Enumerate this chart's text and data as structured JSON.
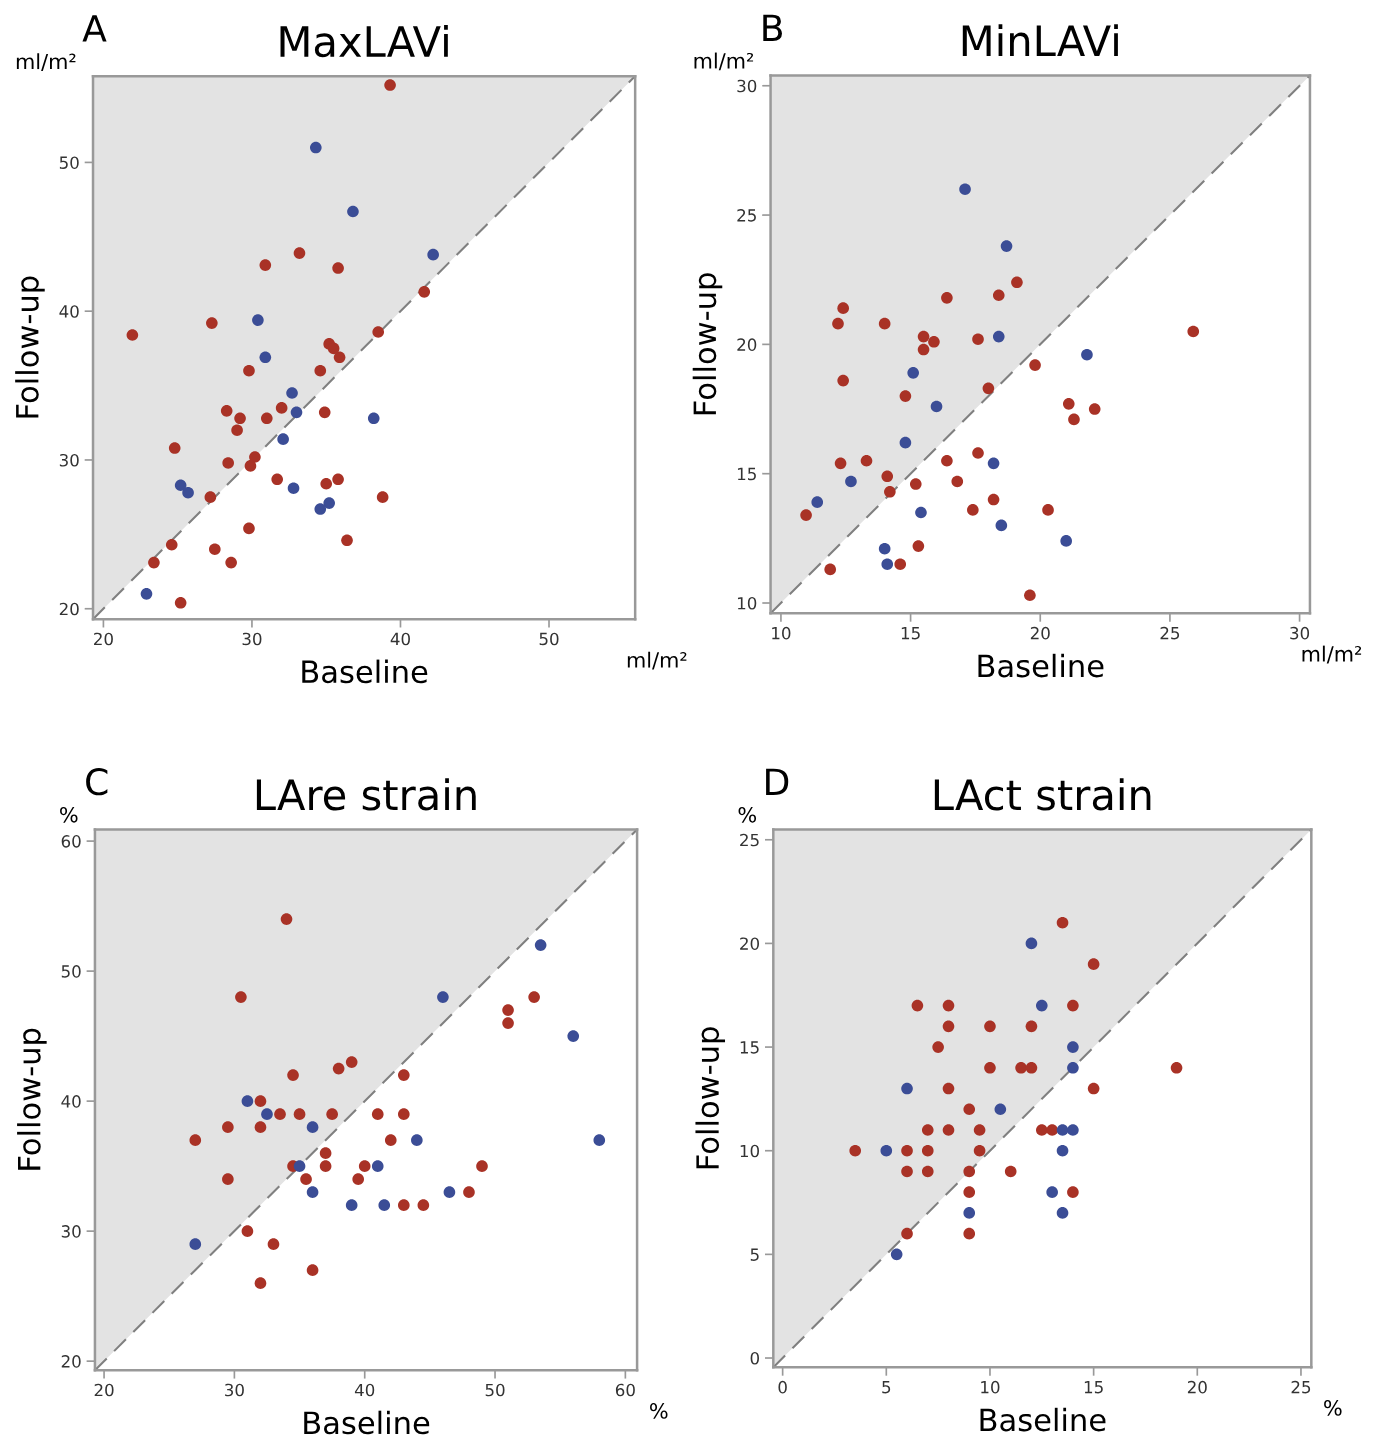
{
  "chart_data": [
    {
      "type": "scatter",
      "title": "MaxLAVi",
      "xlabel": "Baseline",
      "ylabel": "Follow-up",
      "annotations": [
        "A",
        "ml/m²",
        "ml/m²"
      ],
      "xlim": [
        19.3,
        55.8
      ],
      "ylim": [
        19.3,
        55.8
      ],
      "xticks": [
        20,
        30,
        40,
        50
      ],
      "yticks": [
        20,
        30,
        40,
        50
      ],
      "grid": false,
      "series": [
        {
          "color": "#a93226",
          "marker": "circle",
          "x": [
            39.3,
            21.95,
            27.3,
            30.9,
            33.2,
            35.8,
            41.6,
            38.5,
            29.8,
            34.6,
            35.2,
            35.5,
            35.9,
            28.3,
            29.2,
            29.0,
            31.0,
            32.0,
            24.8,
            28.4,
            30.2,
            29.9,
            27.2,
            34.9,
            31.7,
            35.0,
            35.8,
            38.8,
            29.8,
            36.4,
            24.6,
            27.5,
            23.4,
            28.6,
            25.2
          ],
          "values": [
            55.2,
            38.4,
            39.2,
            43.1,
            43.9,
            42.9,
            41.3,
            38.6,
            36.0,
            36.0,
            37.8,
            37.5,
            36.9,
            33.3,
            32.8,
            32.0,
            32.8,
            33.5,
            30.8,
            29.8,
            30.2,
            29.6,
            27.5,
            33.2,
            28.7,
            28.4,
            28.7,
            27.5,
            25.4,
            24.6,
            24.3,
            24.0,
            23.1,
            23.1,
            20.4
          ]
        },
        {
          "color": "#3b4d96",
          "marker": "circle",
          "x": [
            34.3,
            36.8,
            42.2,
            30.4,
            30.9,
            32.7,
            33.0,
            32.1,
            38.2,
            25.2,
            25.7,
            32.8,
            35.2,
            34.6,
            22.9
          ],
          "values": [
            51.0,
            46.7,
            43.8,
            39.4,
            36.9,
            34.5,
            33.2,
            31.4,
            32.8,
            28.3,
            27.8,
            28.1,
            27.1,
            26.7,
            21.0
          ]
        },
        {
          "type": "line",
          "color": "#808080",
          "line_style": "dashed",
          "x": [
            19.3,
            55.8
          ],
          "values": [
            19.3,
            55.8
          ]
        }
      ]
    },
    {
      "type": "scatter",
      "title": "MinLAVi",
      "xlabel": "Baseline",
      "ylabel": "Follow-up",
      "annotations": [
        "B",
        "ml/m²",
        "ml/m²"
      ],
      "xlim": [
        9.6,
        30.4
      ],
      "ylim": [
        9.6,
        30.4
      ],
      "xticks": [
        10,
        15,
        20,
        25,
        30
      ],
      "yticks": [
        10,
        15,
        20,
        25,
        30
      ],
      "grid": false,
      "series": [
        {
          "color": "#a93226",
          "marker": "circle",
          "x": [
            10.97,
            12.4,
            12.2,
            14.0,
            12.4,
            16.4,
            18.4,
            19.1,
            15.5,
            15.9,
            15.5,
            17.6,
            14.8,
            18.0,
            12.3,
            13.3,
            14.1,
            14.2,
            19.8,
            25.9,
            21.1,
            22.1,
            21.3,
            17.6,
            16.4,
            15.2,
            16.8,
            18.2,
            17.4,
            20.3,
            15.3,
            14.6,
            11.9,
            19.6
          ],
          "values": [
            13.4,
            21.4,
            20.8,
            20.8,
            18.6,
            21.8,
            21.9,
            22.4,
            20.3,
            20.1,
            19.8,
            20.2,
            18.0,
            18.3,
            15.4,
            15.5,
            14.9,
            14.3,
            19.2,
            20.5,
            17.7,
            17.5,
            17.1,
            15.8,
            15.5,
            14.6,
            14.7,
            14.0,
            13.6,
            13.6,
            12.2,
            11.5,
            11.3,
            10.3
          ]
        },
        {
          "color": "#3b4d96",
          "marker": "circle",
          "x": [
            17.1,
            18.7,
            18.4,
            21.8,
            15.1,
            16.0,
            14.8,
            18.2,
            12.7,
            11.4,
            15.4,
            18.5,
            21.0,
            14.0,
            14.1
          ],
          "values": [
            26.0,
            23.8,
            20.3,
            19.6,
            18.9,
            17.6,
            16.2,
            15.4,
            14.7,
            13.9,
            13.5,
            13.0,
            12.4,
            12.1,
            11.5
          ]
        },
        {
          "type": "line",
          "color": "#808080",
          "line_style": "dashed",
          "x": [
            9.6,
            30.4
          ],
          "values": [
            9.6,
            30.4
          ]
        }
      ]
    },
    {
      "type": "scatter",
      "title": "LAre strain",
      "xlabel": "Baseline",
      "ylabel": "Follow-up",
      "annotations": [
        "C",
        "%",
        "%"
      ],
      "xlim": [
        19.3,
        60.9
      ],
      "ylim": [
        19.3,
        60.9
      ],
      "xticks": [
        20,
        30,
        40,
        50,
        60
      ],
      "yticks": [
        20,
        30,
        40,
        50,
        60
      ],
      "grid": false,
      "series": [
        {
          "color": "#a93226",
          "marker": "circle",
          "x": [
            34,
            30.5,
            34.5,
            38,
            39,
            32,
            33.5,
            35,
            37.5,
            29.5,
            32,
            27,
            29.5,
            34.5,
            43,
            41,
            43,
            42,
            37,
            37,
            40,
            49,
            35.5,
            39.5,
            48,
            43,
            44.5,
            31,
            33,
            36,
            32,
            51,
            51,
            53
          ],
          "values": [
            54,
            48,
            42,
            42.5,
            43,
            40,
            39,
            39,
            39,
            38,
            38,
            37,
            34,
            35,
            42,
            39,
            39,
            37,
            36,
            35,
            35,
            35,
            34,
            34,
            33,
            32,
            32,
            30,
            29,
            27,
            26,
            47,
            46,
            48
          ]
        },
        {
          "color": "#3b4d96",
          "marker": "circle",
          "x": [
            53.5,
            46,
            56,
            58,
            31,
            32.5,
            36,
            35,
            44,
            41,
            36,
            46.5,
            39,
            41.5,
            27
          ],
          "values": [
            52,
            48,
            45,
            37,
            40,
            39,
            38,
            35,
            37,
            35,
            33,
            33,
            32,
            32,
            29
          ]
        },
        {
          "type": "line",
          "color": "#808080",
          "line_style": "dashed",
          "x": [
            19.3,
            60.9
          ],
          "values": [
            19.3,
            60.9
          ]
        }
      ]
    },
    {
      "type": "scatter",
      "title": "LAct strain",
      "xlabel": "Baseline",
      "ylabel": "Follow-up",
      "annotations": [
        "D",
        "%",
        "%"
      ],
      "xlim": [
        -0.45,
        25.5
      ],
      "ylim": [
        -0.45,
        25.5
      ],
      "xticks": [
        0,
        5,
        10,
        15,
        20,
        25
      ],
      "yticks": [
        0,
        5,
        10,
        15,
        20,
        25
      ],
      "grid": false,
      "series": [
        {
          "color": "#a93226",
          "marker": "circle",
          "x": [
            3.5,
            6.5,
            8,
            8,
            10,
            12,
            14,
            13.5,
            15,
            7.5,
            10,
            11.5,
            12,
            8,
            9,
            7,
            8,
            9.5,
            6,
            7,
            9.5,
            6,
            7,
            9,
            6,
            15,
            19,
            12.5,
            13,
            11,
            9,
            14,
            9
          ],
          "values": [
            10,
            17,
            17,
            16,
            16,
            16,
            17,
            21,
            19,
            15,
            14,
            14,
            14,
            13,
            12,
            11,
            11,
            11,
            10,
            10,
            10,
            9,
            9,
            9,
            6,
            13,
            14,
            11,
            11,
            9,
            8,
            8,
            6
          ]
        },
        {
          "color": "#3b4d96",
          "marker": "circle",
          "x": [
            12,
            12.5,
            14,
            14,
            6,
            10.5,
            5,
            13.5,
            14,
            13.5,
            13,
            9,
            13.5,
            5.5
          ],
          "values": [
            20,
            17,
            15,
            14,
            13,
            12,
            10,
            11,
            11,
            10,
            8,
            7,
            7,
            5
          ]
        },
        {
          "type": "line",
          "color": "#808080",
          "line_style": "dashed",
          "x": [
            -0.45,
            25.5
          ],
          "values": [
            -0.45,
            25.5
          ]
        }
      ]
    }
  ]
}
